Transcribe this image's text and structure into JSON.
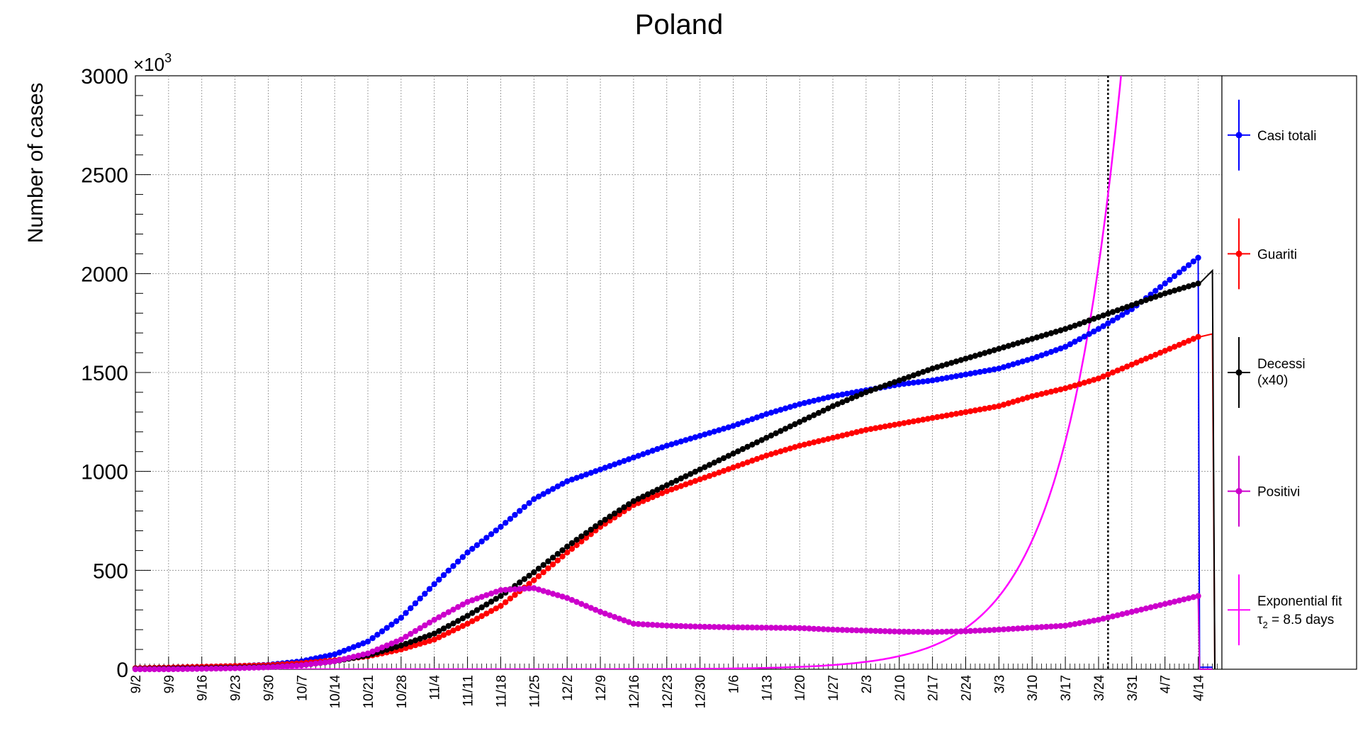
{
  "chart_data": {
    "type": "line",
    "title": "Poland",
    "ylabel": "Number of cases",
    "yexponent": "×10",
    "yexponent_power": "3",
    "xlabel": "",
    "ylim": [
      0,
      3000
    ],
    "yticks": [
      0,
      500,
      1000,
      1500,
      2000,
      2500,
      3000
    ],
    "grid": true,
    "legend_position": "right",
    "x_tick_labels": [
      "9/2",
      "9/9",
      "9/16",
      "9/23",
      "9/30",
      "10/7",
      "10/14",
      "10/21",
      "10/28",
      "11/4",
      "11/11",
      "11/18",
      "11/25",
      "12/2",
      "12/9",
      "12/16",
      "12/23",
      "12/30",
      "1/6",
      "1/13",
      "1/20",
      "1/27",
      "2/3",
      "2/10",
      "2/17",
      "2/24",
      "3/3",
      "3/10",
      "3/17",
      "3/24",
      "3/31",
      "4/7",
      "4/14"
    ],
    "x_range_days": [
      0,
      229
    ],
    "marker_day": 205,
    "series": [
      {
        "name": "Casi totali",
        "color": "#0000ff",
        "style": "markers",
        "points": [
          [
            0,
            5
          ],
          [
            7,
            8
          ],
          [
            14,
            12
          ],
          [
            21,
            16
          ],
          [
            28,
            22
          ],
          [
            35,
            40
          ],
          [
            42,
            75
          ],
          [
            49,
            140
          ],
          [
            56,
            260
          ],
          [
            63,
            430
          ],
          [
            70,
            590
          ],
          [
            77,
            720
          ],
          [
            84,
            860
          ],
          [
            91,
            950
          ],
          [
            98,
            1010
          ],
          [
            105,
            1070
          ],
          [
            112,
            1130
          ],
          [
            119,
            1180
          ],
          [
            126,
            1230
          ],
          [
            133,
            1290
          ],
          [
            140,
            1340
          ],
          [
            147,
            1380
          ],
          [
            154,
            1410
          ],
          [
            161,
            1440
          ],
          [
            168,
            1460
          ],
          [
            175,
            1490
          ],
          [
            182,
            1520
          ],
          [
            189,
            1570
          ],
          [
            196,
            1630
          ],
          [
            203,
            1720
          ],
          [
            210,
            1820
          ],
          [
            217,
            1950
          ],
          [
            224,
            2080
          ]
        ],
        "plateau": 10
      },
      {
        "name": "Guariti",
        "color": "#ff0000",
        "style": "markers",
        "points": [
          [
            0,
            5
          ],
          [
            7,
            8
          ],
          [
            14,
            12
          ],
          [
            21,
            16
          ],
          [
            28,
            20
          ],
          [
            35,
            30
          ],
          [
            42,
            45
          ],
          [
            49,
            65
          ],
          [
            56,
            100
          ],
          [
            63,
            150
          ],
          [
            70,
            230
          ],
          [
            77,
            320
          ],
          [
            84,
            450
          ],
          [
            91,
            590
          ],
          [
            98,
            720
          ],
          [
            105,
            830
          ],
          [
            112,
            900
          ],
          [
            119,
            960
          ],
          [
            126,
            1020
          ],
          [
            133,
            1080
          ],
          [
            140,
            1130
          ],
          [
            147,
            1170
          ],
          [
            154,
            1210
          ],
          [
            161,
            1240
          ],
          [
            168,
            1270
          ],
          [
            175,
            1300
          ],
          [
            182,
            1330
          ],
          [
            189,
            1380
          ],
          [
            196,
            1420
          ],
          [
            203,
            1470
          ],
          [
            210,
            1540
          ],
          [
            217,
            1610
          ],
          [
            224,
            1680
          ]
        ],
        "plateau": 1695,
        "plateau_end_day": 227
      },
      {
        "name": "Decessi (x40)",
        "color": "#000000",
        "style": "markers",
        "points": [
          [
            0,
            2
          ],
          [
            7,
            3
          ],
          [
            14,
            5
          ],
          [
            21,
            8
          ],
          [
            28,
            12
          ],
          [
            35,
            20
          ],
          [
            42,
            40
          ],
          [
            49,
            70
          ],
          [
            56,
            120
          ],
          [
            63,
            180
          ],
          [
            70,
            270
          ],
          [
            77,
            370
          ],
          [
            84,
            490
          ],
          [
            91,
            620
          ],
          [
            98,
            740
          ],
          [
            105,
            850
          ],
          [
            112,
            930
          ],
          [
            119,
            1010
          ],
          [
            126,
            1090
          ],
          [
            133,
            1170
          ],
          [
            140,
            1250
          ],
          [
            147,
            1330
          ],
          [
            154,
            1400
          ],
          [
            161,
            1460
          ],
          [
            168,
            1520
          ],
          [
            175,
            1570
          ],
          [
            182,
            1620
          ],
          [
            189,
            1670
          ],
          [
            196,
            1720
          ],
          [
            203,
            1780
          ],
          [
            210,
            1840
          ],
          [
            217,
            1900
          ],
          [
            224,
            1950
          ]
        ],
        "plateau": 2015,
        "plateau_end_day": 227
      },
      {
        "name": "Positivi",
        "color": "#cc00cc",
        "style": "markers",
        "points": [
          [
            0,
            0
          ],
          [
            7,
            0
          ],
          [
            14,
            2
          ],
          [
            21,
            5
          ],
          [
            28,
            10
          ],
          [
            35,
            20
          ],
          [
            42,
            40
          ],
          [
            49,
            80
          ],
          [
            56,
            150
          ],
          [
            63,
            250
          ],
          [
            70,
            340
          ],
          [
            77,
            400
          ],
          [
            84,
            410
          ],
          [
            91,
            360
          ],
          [
            98,
            290
          ],
          [
            105,
            230
          ],
          [
            112,
            220
          ],
          [
            119,
            215
          ],
          [
            126,
            212
          ],
          [
            133,
            210
          ],
          [
            140,
            208
          ],
          [
            147,
            200
          ],
          [
            154,
            195
          ],
          [
            161,
            190
          ],
          [
            168,
            188
          ],
          [
            175,
            192
          ],
          [
            182,
            200
          ],
          [
            189,
            210
          ],
          [
            196,
            220
          ],
          [
            203,
            250
          ],
          [
            210,
            290
          ],
          [
            217,
            330
          ],
          [
            224,
            370
          ]
        ],
        "plateau": 0
      },
      {
        "name": "Exponential fit",
        "name_line2": "τ2 = 8.5 days",
        "color": "#ff00ff",
        "style": "line",
        "fit": {
          "tau2_days": 8.5,
          "value_at_day_205": 2400
        }
      }
    ]
  },
  "legend": {
    "items": [
      {
        "label": "Casi totali",
        "color": "#0000ff"
      },
      {
        "label": "Guariti",
        "color": "#ff0000"
      },
      {
        "label": "Decessi",
        "label2": "(x40)",
        "color": "#000000"
      },
      {
        "label": "Positivi",
        "color": "#cc00cc"
      },
      {
        "label": "Exponential fit",
        "label2_prefix": "τ",
        "label2_sub": "2",
        "label2_suffix": " = 8.5 days",
        "color": "#ff00ff"
      }
    ]
  }
}
